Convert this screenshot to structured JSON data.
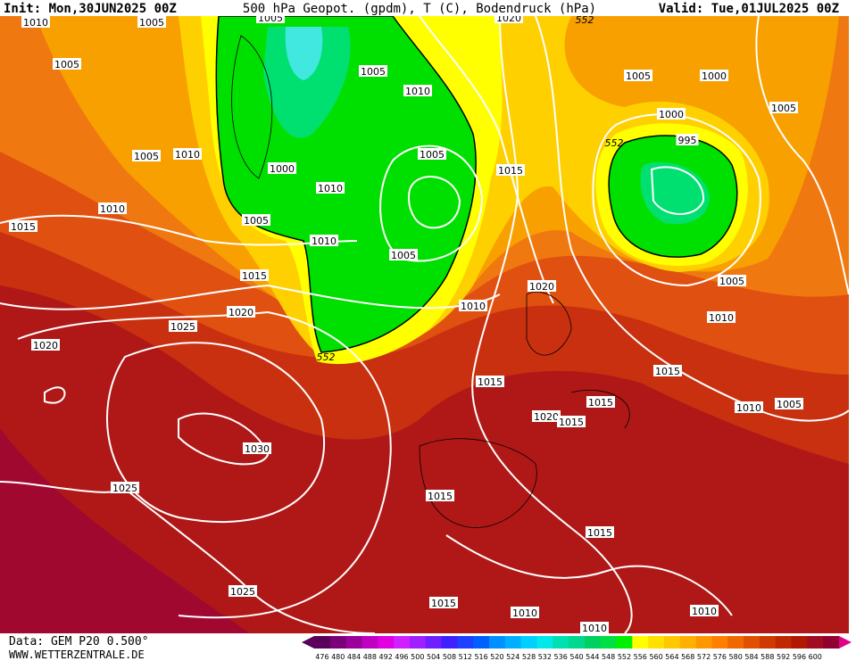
{
  "header": {
    "init": "Init: Mon,30JUN2025 00Z",
    "title": "500 hPa Geopot. (gpdm), T (C), Bodendruck (hPa)",
    "valid": "Valid: Tue,01JUL2025 00Z"
  },
  "map": {
    "isobar_labels": [
      1010,
      1005,
      1005,
      1020,
      552,
      1005,
      1005,
      1010,
      1005,
      1000,
      1005,
      1000,
      995,
      552,
      1005,
      1010,
      1005,
      1000,
      1010,
      1015,
      1010,
      1015,
      1005,
      1010,
      1005,
      1015,
      1005,
      1020,
      1010,
      1020,
      1010,
      1020,
      1025,
      552,
      1015,
      1015,
      1015,
      1010,
      1005,
      1020,
      1015,
      1030,
      1025,
      1015,
      1015,
      1025,
      1015,
      1010,
      1010,
      1010
    ]
  },
  "footer": {
    "data": "Data: GEM P20 0.500°",
    "site": "WWW.WETTERZENTRALE.DE"
  },
  "legend": {
    "values": [
      476,
      480,
      484,
      488,
      492,
      496,
      500,
      504,
      508,
      512,
      516,
      520,
      524,
      528,
      532,
      536,
      540,
      544,
      548,
      552,
      556,
      560,
      564,
      568,
      572,
      576,
      580,
      584,
      588,
      592,
      596,
      600
    ],
    "colors": [
      "#5a005a",
      "#7a007a",
      "#9a009a",
      "#c000c0",
      "#e000e0",
      "#d020ff",
      "#a020ff",
      "#7020ff",
      "#4020ff",
      "#2040ff",
      "#0060ff",
      "#0090ff",
      "#00b0ff",
      "#00d0ff",
      "#00e8e8",
      "#00e0b0",
      "#00d890",
      "#00d060",
      "#00e040",
      "#00f000",
      "#ffff00",
      "#ffe000",
      "#ffc800",
      "#ffb000",
      "#ff9800",
      "#ff8000",
      "#f06800",
      "#e05000",
      "#d03a00",
      "#c02800",
      "#b01800",
      "#a00c20",
      "#900030"
    ]
  }
}
